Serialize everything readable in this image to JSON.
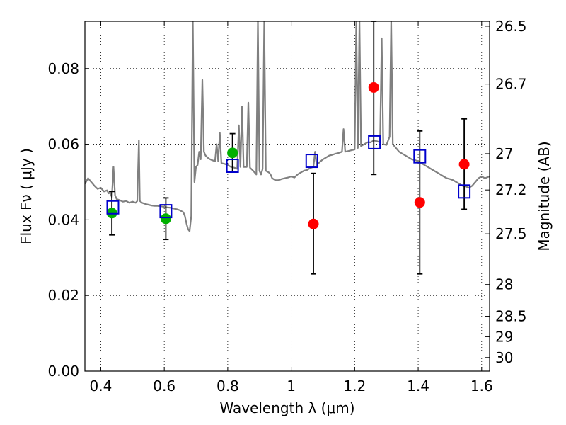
{
  "chart_data": {
    "type": "scatter",
    "title": "",
    "xlabel": "Wavelength  λ (μm)",
    "ylabel": "Flux  Fν  ( μJy )",
    "ylabel_right": "Magnitude (AB)",
    "xlim": [
      0.35,
      1.625
    ],
    "ylim": [
      0.0,
      0.0925
    ],
    "grid": true,
    "x_ticks": [
      0.4,
      0.6,
      0.8,
      1.0,
      1.2,
      1.4,
      1.6
    ],
    "x_tick_labels": [
      "0.4",
      "0.6",
      "0.8",
      "1",
      "1.2",
      "1.4",
      "1.6"
    ],
    "y_ticks": [
      0.0,
      0.02,
      0.04,
      0.06,
      0.08
    ],
    "y_tick_labels": [
      "0.00",
      "0.02",
      "0.04",
      "0.06",
      "0.08"
    ],
    "right_ticks": [
      {
        "label": "26.5",
        "flux": 0.0912
      },
      {
        "label": "26.7",
        "flux": 0.0759
      },
      {
        "label": "27",
        "flux": 0.0575
      },
      {
        "label": "27.2",
        "flux": 0.0479
      },
      {
        "label": "27.5",
        "flux": 0.0363
      },
      {
        "label": "28",
        "flux": 0.0229
      },
      {
        "label": "28.5",
        "flux": 0.0145
      },
      {
        "label": "29",
        "flux": 0.0091
      },
      {
        "label": "30",
        "flux": 0.0036
      }
    ],
    "series": [
      {
        "marker": "circle",
        "color": "#00b000",
        "points": [
          {
            "x": 0.435,
            "y": 0.0418,
            "err": [
              0.036,
              0.0475
            ]
          },
          {
            "x": 0.605,
            "y": 0.0403,
            "err": [
              0.0348,
              0.0458
            ]
          },
          {
            "x": 0.815,
            "y": 0.0577,
            "err": [
              0.0527,
              0.0628
            ]
          }
        ]
      },
      {
        "marker": "circle",
        "color": "#ff0000",
        "points": [
          {
            "x": 1.07,
            "y": 0.0389,
            "err": [
              0.0257,
              0.0523
            ]
          },
          {
            "x": 1.26,
            "y": 0.075,
            "err": [
              0.052,
              0.0925
            ]
          },
          {
            "x": 1.405,
            "y": 0.0446,
            "err": [
              0.0257,
              0.0635
            ]
          },
          {
            "x": 1.545,
            "y": 0.0547,
            "err": [
              0.0428,
              0.0667
            ]
          }
        ]
      },
      {
        "marker": "open-square",
        "color": "#0000cc",
        "points": [
          {
            "x": 0.438,
            "y": 0.0433
          },
          {
            "x": 0.605,
            "y": 0.0423
          },
          {
            "x": 0.815,
            "y": 0.0543
          },
          {
            "x": 1.065,
            "y": 0.0556
          },
          {
            "x": 1.262,
            "y": 0.0605
          },
          {
            "x": 1.405,
            "y": 0.0568
          },
          {
            "x": 1.545,
            "y": 0.0475
          }
        ]
      }
    ],
    "spectrum": {
      "color": "#808080",
      "points": [
        [
          0.35,
          0.0495
        ],
        [
          0.36,
          0.051
        ],
        [
          0.37,
          0.05
        ],
        [
          0.38,
          0.049
        ],
        [
          0.39,
          0.0482
        ],
        [
          0.4,
          0.0485
        ],
        [
          0.41,
          0.0475
        ],
        [
          0.42,
          0.0478
        ],
        [
          0.425,
          0.047
        ],
        [
          0.43,
          0.0472
        ],
        [
          0.435,
          0.046
        ],
        [
          0.44,
          0.054
        ],
        [
          0.445,
          0.0465
        ],
        [
          0.45,
          0.0455
        ],
        [
          0.46,
          0.0452
        ],
        [
          0.47,
          0.0448
        ],
        [
          0.48,
          0.045
        ],
        [
          0.49,
          0.0445
        ],
        [
          0.5,
          0.0448
        ],
        [
          0.51,
          0.0445
        ],
        [
          0.515,
          0.045
        ],
        [
          0.52,
          0.061
        ],
        [
          0.523,
          0.045
        ],
        [
          0.53,
          0.0445
        ],
        [
          0.54,
          0.0442
        ],
        [
          0.55,
          0.044
        ],
        [
          0.56,
          0.0438
        ],
        [
          0.57,
          0.0437
        ],
        [
          0.58,
          0.0437
        ],
        [
          0.59,
          0.0436
        ],
        [
          0.6,
          0.0434
        ],
        [
          0.61,
          0.0433
        ],
        [
          0.62,
          0.0432
        ],
        [
          0.63,
          0.043
        ],
        [
          0.64,
          0.0428
        ],
        [
          0.65,
          0.0425
        ],
        [
          0.66,
          0.042
        ],
        [
          0.665,
          0.041
        ],
        [
          0.67,
          0.039
        ],
        [
          0.675,
          0.0375
        ],
        [
          0.68,
          0.037
        ],
        [
          0.685,
          0.041
        ],
        [
          0.69,
          0.0925
        ],
        [
          0.695,
          0.05
        ],
        [
          0.7,
          0.054
        ],
        [
          0.705,
          0.0545
        ],
        [
          0.71,
          0.058
        ],
        [
          0.715,
          0.056
        ],
        [
          0.72,
          0.077
        ],
        [
          0.725,
          0.058
        ],
        [
          0.73,
          0.057
        ],
        [
          0.74,
          0.0562
        ],
        [
          0.75,
          0.0558
        ],
        [
          0.76,
          0.0555
        ],
        [
          0.765,
          0.06
        ],
        [
          0.77,
          0.0555
        ],
        [
          0.775,
          0.063
        ],
        [
          0.78,
          0.055
        ],
        [
          0.79,
          0.0548
        ],
        [
          0.8,
          0.0545
        ],
        [
          0.81,
          0.054
        ],
        [
          0.82,
          0.0538
        ],
        [
          0.83,
          0.0535
        ],
        [
          0.835,
          0.065
        ],
        [
          0.84,
          0.054
        ],
        [
          0.845,
          0.07
        ],
        [
          0.85,
          0.054
        ],
        [
          0.86,
          0.054
        ],
        [
          0.865,
          0.071
        ],
        [
          0.87,
          0.0538
        ],
        [
          0.88,
          0.053
        ],
        [
          0.89,
          0.052
        ],
        [
          0.895,
          0.0925
        ],
        [
          0.9,
          0.053
        ],
        [
          0.905,
          0.052
        ],
        [
          0.91,
          0.0535
        ],
        [
          0.915,
          0.0925
        ],
        [
          0.92,
          0.053
        ],
        [
          0.93,
          0.0525
        ],
        [
          0.935,
          0.052
        ],
        [
          0.94,
          0.051
        ],
        [
          0.95,
          0.0505
        ],
        [
          0.96,
          0.0505
        ],
        [
          0.97,
          0.0508
        ],
        [
          0.98,
          0.051
        ],
        [
          0.99,
          0.0512
        ],
        [
          1.0,
          0.0515
        ],
        [
          1.01,
          0.0512
        ],
        [
          1.02,
          0.052
        ],
        [
          1.03,
          0.0525
        ],
        [
          1.04,
          0.053
        ],
        [
          1.05,
          0.0532
        ],
        [
          1.06,
          0.0537
        ],
        [
          1.07,
          0.054
        ],
        [
          1.075,
          0.058
        ],
        [
          1.08,
          0.0545
        ],
        [
          1.09,
          0.0553
        ],
        [
          1.1,
          0.056
        ],
        [
          1.11,
          0.0565
        ],
        [
          1.12,
          0.057
        ],
        [
          1.13,
          0.0572
        ],
        [
          1.14,
          0.0575
        ],
        [
          1.15,
          0.0577
        ],
        [
          1.16,
          0.058
        ],
        [
          1.165,
          0.064
        ],
        [
          1.17,
          0.058
        ],
        [
          1.18,
          0.0582
        ],
        [
          1.19,
          0.0584
        ],
        [
          1.2,
          0.0586
        ],
        [
          1.205,
          0.0925
        ],
        [
          1.21,
          0.059
        ],
        [
          1.215,
          0.0925
        ],
        [
          1.22,
          0.0595
        ],
        [
          1.23,
          0.06
        ],
        [
          1.24,
          0.0605
        ],
        [
          1.25,
          0.0605
        ],
        [
          1.26,
          0.061
        ],
        [
          1.27,
          0.0608
        ],
        [
          1.28,
          0.0605
        ],
        [
          1.285,
          0.088
        ],
        [
          1.29,
          0.06
        ],
        [
          1.3,
          0.0598
        ],
        [
          1.31,
          0.062
        ],
        [
          1.315,
          0.0925
        ],
        [
          1.32,
          0.06
        ],
        [
          1.33,
          0.059
        ],
        [
          1.34,
          0.058
        ],
        [
          1.35,
          0.0575
        ],
        [
          1.36,
          0.057
        ],
        [
          1.37,
          0.0565
        ],
        [
          1.38,
          0.056
        ],
        [
          1.39,
          0.0558
        ],
        [
          1.4,
          0.0555
        ],
        [
          1.41,
          0.055
        ],
        [
          1.42,
          0.0545
        ],
        [
          1.43,
          0.054
        ],
        [
          1.44,
          0.0535
        ],
        [
          1.45,
          0.053
        ],
        [
          1.46,
          0.0525
        ],
        [
          1.47,
          0.052
        ],
        [
          1.48,
          0.0515
        ],
        [
          1.49,
          0.051
        ],
        [
          1.5,
          0.0508
        ],
        [
          1.51,
          0.0505
        ],
        [
          1.52,
          0.05
        ],
        [
          1.53,
          0.0495
        ],
        [
          1.54,
          0.049
        ],
        [
          1.55,
          0.0488
        ],
        [
          1.56,
          0.0485
        ],
        [
          1.57,
          0.049
        ],
        [
          1.58,
          0.05
        ],
        [
          1.59,
          0.051
        ],
        [
          1.6,
          0.0515
        ],
        [
          1.61,
          0.051
        ],
        [
          1.625,
          0.0515
        ]
      ]
    }
  }
}
